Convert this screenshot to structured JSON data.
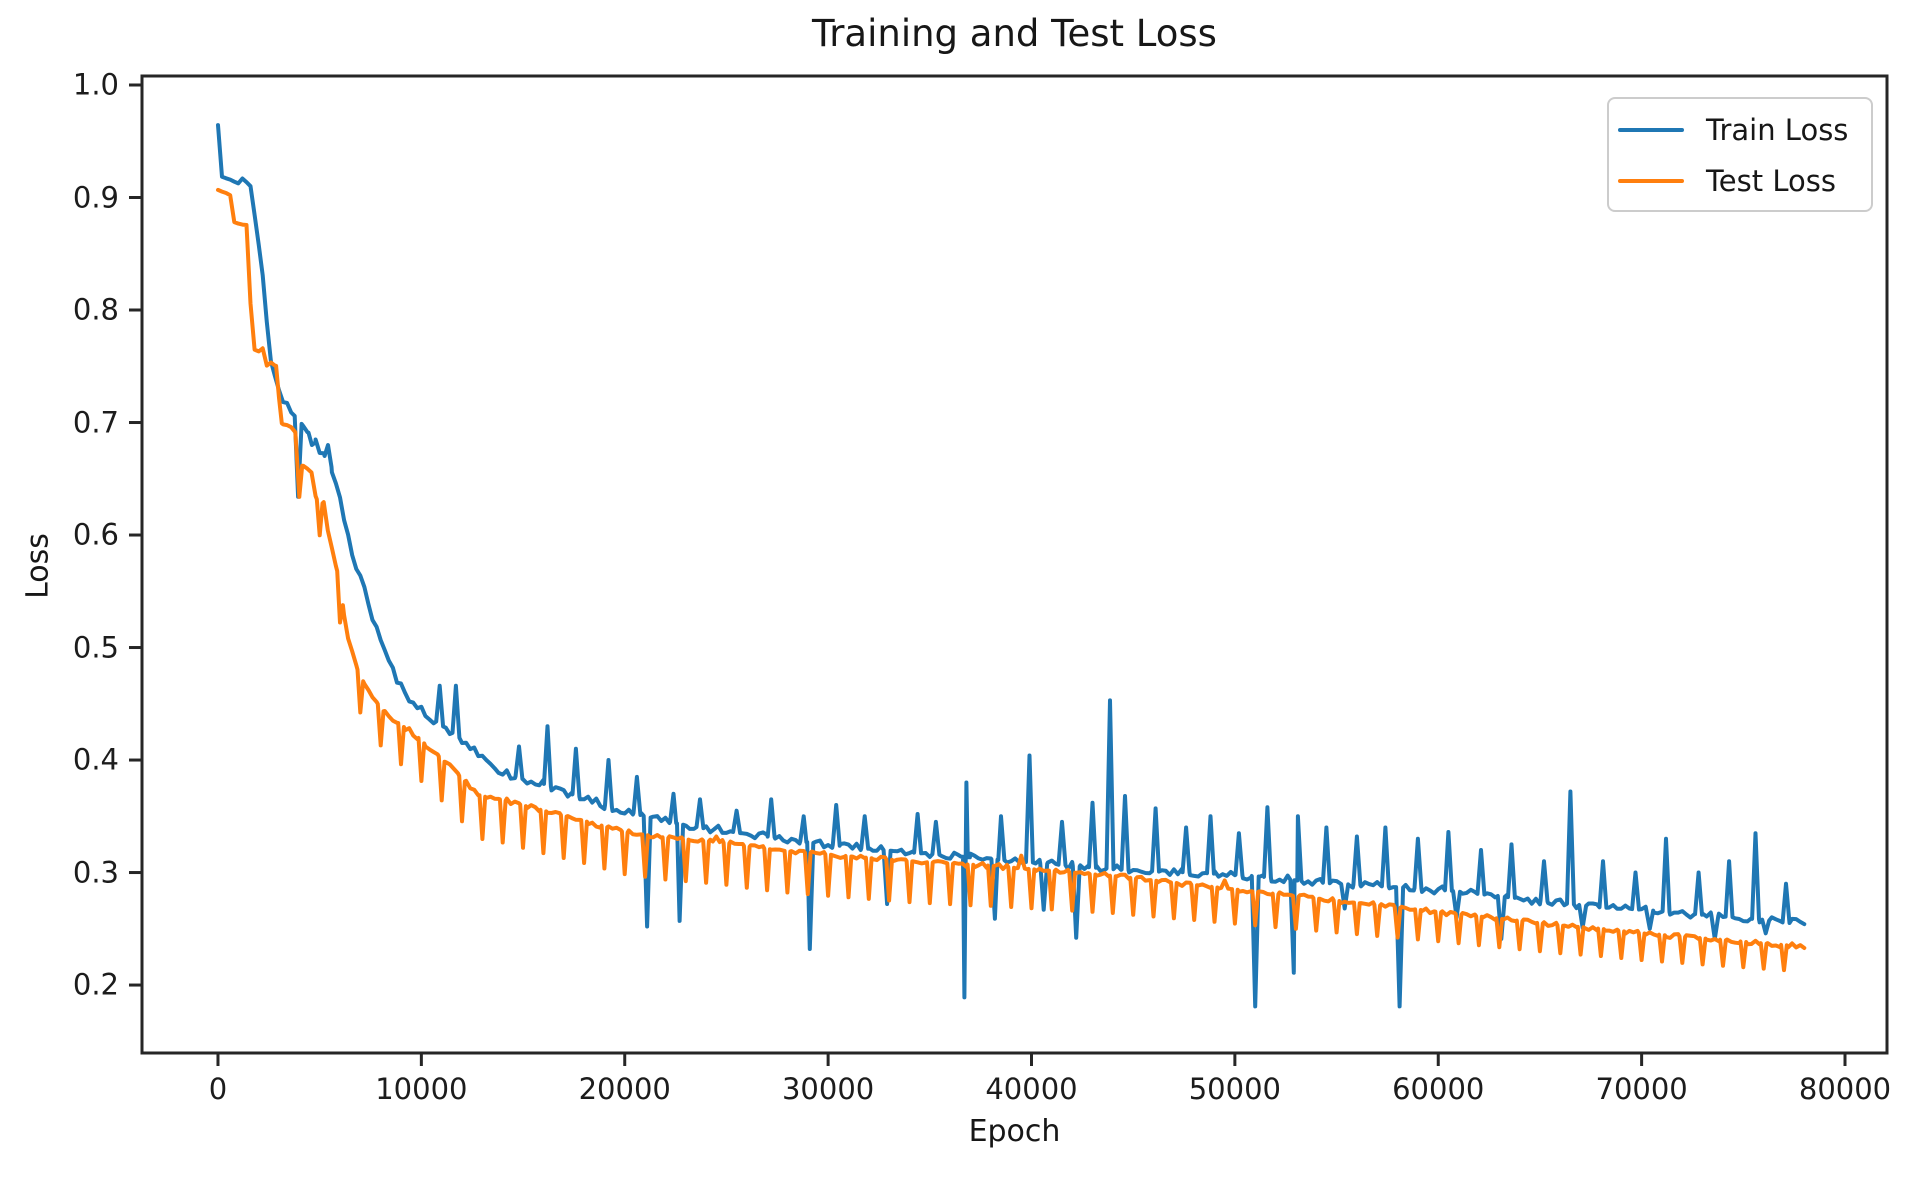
{
  "figure": {
    "title": "Training and Test Loss",
    "xlabel": "Epoch",
    "ylabel": "Loss"
  },
  "legend": {
    "items": [
      {
        "label": "Train Loss",
        "color": "#1f77b4"
      },
      {
        "label": "Test Loss",
        "color": "#ff7f0e"
      }
    ]
  },
  "colors": {
    "train": "#1f77b4",
    "test": "#ff7f0e",
    "spine": "#262626",
    "text": "#1c1c1c",
    "legend_border": "#cccccc"
  },
  "chart_data": {
    "type": "line",
    "title": "Training and Test Loss",
    "xlabel": "Epoch",
    "ylabel": "Loss",
    "grid": false,
    "legend_position": "upper right",
    "xlim": [
      -3736,
      82065
    ],
    "ylim": [
      0.1396,
      1.008
    ],
    "x_ticks": [
      0,
      10000,
      20000,
      30000,
      40000,
      50000,
      60000,
      70000,
      80000
    ],
    "x_tick_labels": [
      "0",
      "10000",
      "20000",
      "30000",
      "40000",
      "50000",
      "60000",
      "70000",
      "80000"
    ],
    "y_ticks": [
      1.0,
      0.9,
      0.8,
      0.7,
      0.6,
      0.5,
      0.4,
      0.3,
      0.2
    ],
    "y_tick_labels": [
      "1.0",
      "0.9",
      "0.8",
      "0.7",
      "0.6",
      "0.5",
      "0.4",
      "0.3",
      "0.2"
    ],
    "render": {
      "sample_step": 200,
      "spike_halfwidth": 170,
      "dip_halfwidth": 140
    },
    "series": [
      {
        "name": "Train Loss",
        "color": "#1f77b4",
        "noise": 0.0035,
        "trend": [
          [
            0,
            0.966
          ],
          [
            130,
            0.919
          ],
          [
            600,
            0.917
          ],
          [
            1000,
            0.915
          ],
          [
            1450,
            0.912
          ],
          [
            1570,
            0.917
          ],
          [
            1700,
            0.895
          ],
          [
            1900,
            0.872
          ],
          [
            2100,
            0.845
          ],
          [
            2300,
            0.812
          ],
          [
            2460,
            0.772
          ],
          [
            2600,
            0.756
          ],
          [
            3050,
            0.726
          ],
          [
            3500,
            0.712
          ],
          [
            3900,
            0.703
          ],
          [
            4200,
            0.697
          ],
          [
            4700,
            0.685
          ],
          [
            5100,
            0.673
          ],
          [
            5510,
            0.665
          ],
          [
            5900,
            0.64
          ],
          [
            6300,
            0.607
          ],
          [
            6700,
            0.578
          ],
          [
            7100,
            0.556
          ],
          [
            7600,
            0.527
          ],
          [
            8100,
            0.504
          ],
          [
            8800,
            0.47
          ],
          [
            9600,
            0.45
          ],
          [
            10300,
            0.44
          ],
          [
            10900,
            0.432
          ],
          [
            11700,
            0.422
          ],
          [
            12400,
            0.413
          ],
          [
            13100,
            0.4
          ],
          [
            13900,
            0.39
          ],
          [
            15000,
            0.383
          ],
          [
            16000,
            0.379
          ],
          [
            17000,
            0.372
          ],
          [
            18000,
            0.366
          ],
          [
            19000,
            0.36
          ],
          [
            20000,
            0.355
          ],
          [
            21000,
            0.35
          ],
          [
            22000,
            0.346
          ],
          [
            23000,
            0.342
          ],
          [
            24000,
            0.339
          ],
          [
            24700,
            0.338
          ],
          [
            26000,
            0.334
          ],
          [
            27500,
            0.331
          ],
          [
            29000,
            0.327
          ],
          [
            30500,
            0.324
          ],
          [
            32000,
            0.321
          ],
          [
            34000,
            0.318
          ],
          [
            36000,
            0.315
          ],
          [
            38000,
            0.312
          ],
          [
            40000,
            0.309
          ],
          [
            42000,
            0.306
          ],
          [
            44000,
            0.303
          ],
          [
            46000,
            0.301
          ],
          [
            48000,
            0.3
          ],
          [
            50000,
            0.298
          ],
          [
            51500,
            0.296
          ],
          [
            53000,
            0.293
          ],
          [
            55000,
            0.29
          ],
          [
            57000,
            0.288
          ],
          [
            59000,
            0.286
          ],
          [
            60500,
            0.284
          ],
          [
            62000,
            0.281
          ],
          [
            63500,
            0.278
          ],
          [
            65000,
            0.275
          ],
          [
            66500,
            0.272
          ],
          [
            68000,
            0.269
          ],
          [
            70000,
            0.267
          ],
          [
            72000,
            0.264
          ],
          [
            74000,
            0.261
          ],
          [
            76000,
            0.258
          ],
          [
            77200,
            0.255
          ],
          [
            78000,
            0.257
          ]
        ],
        "spikes": [
          [
            4620,
            0.68
          ],
          [
            5410,
            0.68
          ],
          [
            10900,
            0.466
          ],
          [
            11700,
            0.466
          ],
          [
            14800,
            0.412
          ],
          [
            16200,
            0.43
          ],
          [
            17600,
            0.41
          ],
          [
            19200,
            0.4
          ],
          [
            20600,
            0.385
          ],
          [
            22400,
            0.37
          ],
          [
            23700,
            0.365
          ],
          [
            25500,
            0.355
          ],
          [
            27200,
            0.365
          ],
          [
            28800,
            0.35
          ],
          [
            30400,
            0.36
          ],
          [
            31800,
            0.35
          ],
          [
            34400,
            0.352
          ],
          [
            35300,
            0.345
          ],
          [
            36800,
            0.38
          ],
          [
            38500,
            0.35
          ],
          [
            39900,
            0.404
          ],
          [
            41500,
            0.345
          ],
          [
            43000,
            0.362
          ],
          [
            43860,
            0.453
          ],
          [
            44600,
            0.368
          ],
          [
            46100,
            0.357
          ],
          [
            47600,
            0.34
          ],
          [
            48800,
            0.35
          ],
          [
            50200,
            0.335
          ],
          [
            51600,
            0.358
          ],
          [
            53100,
            0.35
          ],
          [
            54500,
            0.34
          ],
          [
            56000,
            0.332
          ],
          [
            57400,
            0.34
          ],
          [
            59000,
            0.33
          ],
          [
            60500,
            0.336
          ],
          [
            62100,
            0.32
          ],
          [
            63600,
            0.325
          ],
          [
            65200,
            0.31
          ],
          [
            66500,
            0.372
          ],
          [
            68100,
            0.31
          ],
          [
            69700,
            0.3
          ],
          [
            71200,
            0.33
          ],
          [
            72800,
            0.3
          ],
          [
            74300,
            0.31
          ],
          [
            75600,
            0.335
          ],
          [
            77100,
            0.29
          ],
          [
            3940,
            0.634
          ],
          [
            21100,
            0.252
          ],
          [
            22700,
            0.257
          ],
          [
            29100,
            0.232
          ],
          [
            32900,
            0.272
          ],
          [
            36700,
            0.189
          ],
          [
            38200,
            0.259
          ],
          [
            40600,
            0.267
          ],
          [
            42200,
            0.242
          ],
          [
            51000,
            0.181
          ],
          [
            52900,
            0.211
          ],
          [
            55400,
            0.268
          ],
          [
            58100,
            0.181
          ],
          [
            60900,
            0.26
          ],
          [
            63100,
            0.241
          ],
          [
            67100,
            0.251
          ],
          [
            70400,
            0.25
          ],
          [
            73600,
            0.241
          ],
          [
            76100,
            0.246
          ]
        ]
      },
      {
        "name": "Test Loss",
        "color": "#ff7f0e",
        "noise": 0.0022,
        "trend": [
          [
            0,
            0.905
          ],
          [
            700,
            0.903
          ],
          [
            780,
            0.877
          ],
          [
            1550,
            0.876
          ],
          [
            1630,
            0.765
          ],
          [
            2280,
            0.764
          ],
          [
            2350,
            0.752
          ],
          [
            3000,
            0.75
          ],
          [
            3080,
            0.7
          ],
          [
            3800,
            0.692
          ],
          [
            3900,
            0.664
          ],
          [
            4600,
            0.657
          ],
          [
            4700,
            0.634
          ],
          [
            5300,
            0.626
          ],
          [
            5420,
            0.601
          ],
          [
            5900,
            0.565
          ],
          [
            6400,
            0.508
          ],
          [
            6900,
            0.478
          ],
          [
            7500,
            0.458
          ],
          [
            8200,
            0.442
          ],
          [
            9000,
            0.431
          ],
          [
            9600,
            0.424
          ],
          [
            10300,
            0.412
          ],
          [
            11000,
            0.401
          ],
          [
            11800,
            0.387
          ],
          [
            12900,
            0.368
          ],
          [
            13900,
            0.365
          ],
          [
            16000,
            0.355
          ],
          [
            18000,
            0.346
          ],
          [
            20000,
            0.336
          ],
          [
            22000,
            0.331
          ],
          [
            24700,
            0.327
          ],
          [
            26500,
            0.322
          ],
          [
            28000,
            0.319
          ],
          [
            30000,
            0.316
          ],
          [
            32000,
            0.313
          ],
          [
            34000,
            0.31
          ],
          [
            36000,
            0.308
          ],
          [
            38000,
            0.306
          ],
          [
            40000,
            0.303
          ],
          [
            42000,
            0.3
          ],
          [
            44000,
            0.297
          ],
          [
            46000,
            0.293
          ],
          [
            48000,
            0.289
          ],
          [
            50000,
            0.285
          ],
          [
            52000,
            0.281
          ],
          [
            54000,
            0.277
          ],
          [
            56000,
            0.273
          ],
          [
            58000,
            0.269
          ],
          [
            60000,
            0.265
          ],
          [
            62000,
            0.261
          ],
          [
            64000,
            0.257
          ],
          [
            66000,
            0.253
          ],
          [
            68000,
            0.25
          ],
          [
            70000,
            0.246
          ],
          [
            72000,
            0.243
          ],
          [
            74000,
            0.24
          ],
          [
            76000,
            0.237
          ],
          [
            78000,
            0.234
          ]
        ],
        "spikes": [
          [
            24500,
            0.332
          ],
          [
            39500,
            0.315
          ],
          [
            49500,
            0.293
          ]
        ],
        "dips": {
          "start": 3000,
          "end": 77500,
          "interval": 1000,
          "depth_profile": [
            [
              3000,
              0.028
            ],
            [
              12000,
              0.038
            ],
            [
              37000,
              0.036
            ],
            [
              60000,
              0.026
            ],
            [
              78000,
              0.022
            ]
          ]
        }
      }
    ]
  }
}
